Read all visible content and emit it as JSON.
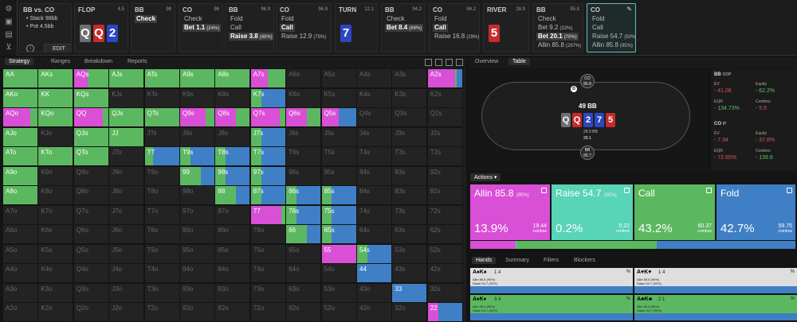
{
  "matchup": {
    "title": "BB vs. CO",
    "stack": "• Stack 98bb",
    "pot": "• Pot 4.5bb",
    "edit": "EDIT"
  },
  "streets": [
    {
      "header": "FLOP",
      "value": "4.5",
      "cards": [
        {
          "r": "Q",
          "s": "s"
        },
        {
          "r": "Q",
          "s": "h"
        },
        {
          "r": "2",
          "s": "d"
        }
      ]
    },
    {
      "header": "BB",
      "value": "98",
      "actions": [
        {
          "t": "Check",
          "sel": true
        }
      ]
    },
    {
      "header": "CO",
      "value": "98",
      "actions": [
        {
          "t": "Check"
        },
        {
          "t": "Bet 1.1",
          "p": "(24%)",
          "sel": true
        }
      ]
    },
    {
      "header": "BB",
      "value": "96.9",
      "actions": [
        {
          "t": "Fold"
        },
        {
          "t": "Call"
        },
        {
          "t": "Raise 3.8",
          "p": "(40%)",
          "sel": true
        }
      ]
    },
    {
      "header": "CO",
      "value": "96.9",
      "actions": [
        {
          "t": "Fold"
        },
        {
          "t": "Call",
          "sel": true
        },
        {
          "t": "Raise 12.9",
          "p": "(75%)"
        }
      ]
    },
    {
      "header": "TURN",
      "value": "12.1",
      "cards": [
        {
          "r": "7",
          "s": "d"
        }
      ]
    },
    {
      "header": "BB",
      "value": "94.2",
      "actions": [
        {
          "t": "Check"
        },
        {
          "t": "Bet 8.4",
          "p": "(69%)",
          "sel": true
        }
      ]
    },
    {
      "header": "CO",
      "value": "94.2",
      "actions": [
        {
          "t": "Fold"
        },
        {
          "t": "Call",
          "sel": true
        },
        {
          "t": "Raise 16.8",
          "p": "(29%)"
        }
      ]
    },
    {
      "header": "RIVER",
      "value": "28.9",
      "cards": [
        {
          "r": "5",
          "s": "h"
        }
      ]
    },
    {
      "header": "BB",
      "value": "85.8",
      "actions": [
        {
          "t": "Check"
        },
        {
          "t": "Bet 9.2",
          "p": "(32%)"
        },
        {
          "t": "Bet 20.1",
          "p": "(70%)",
          "sel": true
        },
        {
          "t": "Allin 85.8",
          "p": "(297%)"
        }
      ]
    },
    {
      "header": "CO",
      "value": "",
      "actions": [
        {
          "t": "Fold"
        },
        {
          "t": "Call"
        },
        {
          "t": "Raise 54.7",
          "p": "(50%)"
        },
        {
          "t": "Allin 85.8",
          "p": "(95%)"
        }
      ]
    }
  ],
  "tabs": [
    "Strategy",
    "Ranges",
    "Breakdown",
    "Reports"
  ],
  "right_tabs": [
    "Overview",
    "Table"
  ],
  "colors": {
    "allin": "#d94fd6",
    "raise": "#58d4b6",
    "call": "#5cb860",
    "fold": "#3f7fc6"
  },
  "grid": {
    "ranks": [
      "A",
      "K",
      "Q",
      "J",
      "T",
      "9",
      "8",
      "7",
      "6",
      "5",
      "4",
      "3",
      "2"
    ],
    "cells": {
      "AA": [
        0,
        0,
        1,
        0
      ],
      "AKs": [
        0,
        0,
        1,
        0
      ],
      "AQs": [
        0.4,
        0,
        0.6,
        0
      ],
      "AJs": [
        0,
        0,
        1,
        0
      ],
      "ATs": [
        0,
        0,
        1,
        0
      ],
      "A9s": [
        0,
        0,
        1,
        0
      ],
      "A8s": [
        0,
        0,
        1,
        0
      ],
      "A7s": [
        0.5,
        0,
        0.5,
        0
      ],
      "A2s": [
        0.8,
        0,
        0.05,
        0.15
      ],
      "AKo": [
        0,
        0,
        1,
        0
      ],
      "KK": [
        0,
        0,
        1,
        0
      ],
      "KQs": [
        0,
        0,
        1,
        0
      ],
      "K7s": [
        0,
        0,
        0.3,
        0.7
      ],
      "AQo": [
        0.8,
        0,
        0.2,
        0
      ],
      "KQo": [
        0,
        0,
        1,
        0
      ],
      "QQ": [
        0.85,
        0,
        0.15,
        0
      ],
      "QJs": [
        0,
        0,
        1,
        0
      ],
      "QTs": [
        0,
        0,
        1,
        0
      ],
      "Q9s": [
        0.75,
        0,
        0.25,
        0
      ],
      "Q8s": [
        0.6,
        0,
        0.4,
        0
      ],
      "Q7s": [
        0.85,
        0,
        0.15,
        0
      ],
      "Q6s": [
        0.6,
        0,
        0.4,
        0
      ],
      "Q5s": [
        0.5,
        0,
        0,
        0.5
      ],
      "AJo": [
        0,
        0,
        1,
        0
      ],
      "QJo": [
        0,
        0,
        1,
        0
      ],
      "JJ": [
        0,
        0,
        1,
        0
      ],
      "J7s": [
        0,
        0,
        0.3,
        0.7
      ],
      "ATo": [
        0,
        0,
        1,
        0
      ],
      "KTo": [
        0,
        0,
        1,
        0
      ],
      "QTo": [
        0,
        0,
        1,
        0
      ],
      "TT": [
        0,
        0,
        0.25,
        0.75
      ],
      "T9s": [
        0,
        0,
        0.3,
        0.7
      ],
      "T8s": [
        0,
        0,
        0.3,
        0.7
      ],
      "T7s": [
        0,
        0,
        0.3,
        0.7
      ],
      "A9o": [
        0,
        0,
        1,
        0
      ],
      "99": [
        0,
        0,
        0.6,
        0.4
      ],
      "98s": [
        0,
        0,
        0.3,
        0.7
      ],
      "97s": [
        0,
        0,
        0.3,
        0.7
      ],
      "A8o": [
        0,
        0,
        1,
        0
      ],
      "88": [
        0,
        0,
        0.6,
        0.4
      ],
      "87s": [
        0,
        0,
        0.3,
        0.7
      ],
      "86s": [
        0,
        0,
        0.3,
        0.7
      ],
      "85s": [
        0,
        0,
        0.3,
        0.7
      ],
      "77": [
        0.9,
        0,
        0.1,
        0
      ],
      "76s": [
        0,
        0,
        0.3,
        0.7
      ],
      "75s": [
        0,
        0,
        0.3,
        0.7
      ],
      "66": [
        0,
        0,
        0.6,
        0.4
      ],
      "65s": [
        0,
        0,
        0.3,
        0.7
      ],
      "55": [
        1,
        0,
        0,
        0
      ],
      "54s": [
        0,
        0,
        0.3,
        0.7
      ],
      "44": [
        0,
        0,
        0,
        1
      ],
      "33": [
        0,
        0,
        0,
        1
      ],
      "22": [
        0.3,
        0,
        0,
        0.7
      ]
    }
  },
  "table": {
    "co_seat": "CO",
    "co_stack": "85.8",
    "bb_seat": "BB",
    "bb_stack": "65.7",
    "pot": "49 BB",
    "board": [
      {
        "r": "Q",
        "s": "s"
      },
      {
        "r": "Q",
        "s": "h"
      },
      {
        "r": "2",
        "s": "d"
      },
      {
        "r": "7",
        "s": "d"
      },
      {
        "r": "5",
        "s": "h"
      }
    ],
    "chip_top": "28.9 BB",
    "chip_bet": "20.1"
  },
  "stats": {
    "bb": {
      "label": "BB",
      "pos": "OOP",
      "ev_k": "EV",
      "ev": "- 41.06",
      "eq_k": "Equity",
      "eq": "- 62.2%",
      "eqr_k": "EQR",
      "eqr": "- 134.73%",
      "cmb_k": "Combos",
      "cmb": "- 5.5"
    },
    "co": {
      "label": "CO",
      "pos": "IP",
      "ev_k": "EV",
      "ev": "- 7.94",
      "eq_k": "Equity",
      "eq": "- 37.8%",
      "eqr_k": "EQR",
      "eqr": "- 72.65%",
      "cmb_k": "Combos",
      "cmb": "- 139.8"
    }
  },
  "actions_label": "Actions",
  "action_boxes": [
    {
      "name": "Allin 85.8",
      "p": "(95%)",
      "pct": "13.9%",
      "combos": "19.44",
      "color": "allin"
    },
    {
      "name": "Raise 54.7",
      "p": "(50%)",
      "pct": "0.2%",
      "combos": "0.22",
      "color": "raise"
    },
    {
      "name": "Call",
      "p": "",
      "pct": "43.2%",
      "combos": "60.37",
      "color": "call"
    },
    {
      "name": "Fold",
      "p": "",
      "pct": "42.7%",
      "combos": "59.75",
      "color": "fold"
    }
  ],
  "combos_label": "combos",
  "freq": {
    "allin": 0.139,
    "raise": 0.002,
    "call": 0.432,
    "fold": 0.427
  },
  "hand_tabs": [
    "Hands",
    "Summary",
    "Filters",
    "Blockers"
  ],
  "hands": [
    {
      "cards": "A♠K♠",
      "tags": "1 4",
      "l1": "Allin 85.8 (95%)",
      "l2": "Raise 54.7 (50%)",
      "l3": "Call",
      "l4": "Fold",
      "pct": "%",
      "bar": "fold",
      "bg": "#dedede"
    },
    {
      "cards": "A♥K♥",
      "tags": "1 4",
      "l1": "Allin 85.8 (95%)",
      "l2": "Raise 54.7 (50%)",
      "l3": "Call",
      "l4": "Fold",
      "pct": "%",
      "bar": "fold",
      "bg": "#dedede"
    },
    {
      "cards": "A♦K♦",
      "tags": "3 4",
      "l1": "Allin 85.8 (95%)",
      "l2": "Raise 54.7 (50%)",
      "l3": "Call",
      "l4": "Fold",
      "pct": "%",
      "bar": "fold",
      "bg": "#5cb860"
    },
    {
      "cards": "A♣K♣",
      "tags": "2 1",
      "l1": "Allin 85.8 (95%)",
      "l2": "Raise 54.7 (50%)",
      "l3": "Call",
      "l4": "Fold",
      "pct": "%",
      "bar": "fold",
      "bg": "#5cb860"
    }
  ]
}
